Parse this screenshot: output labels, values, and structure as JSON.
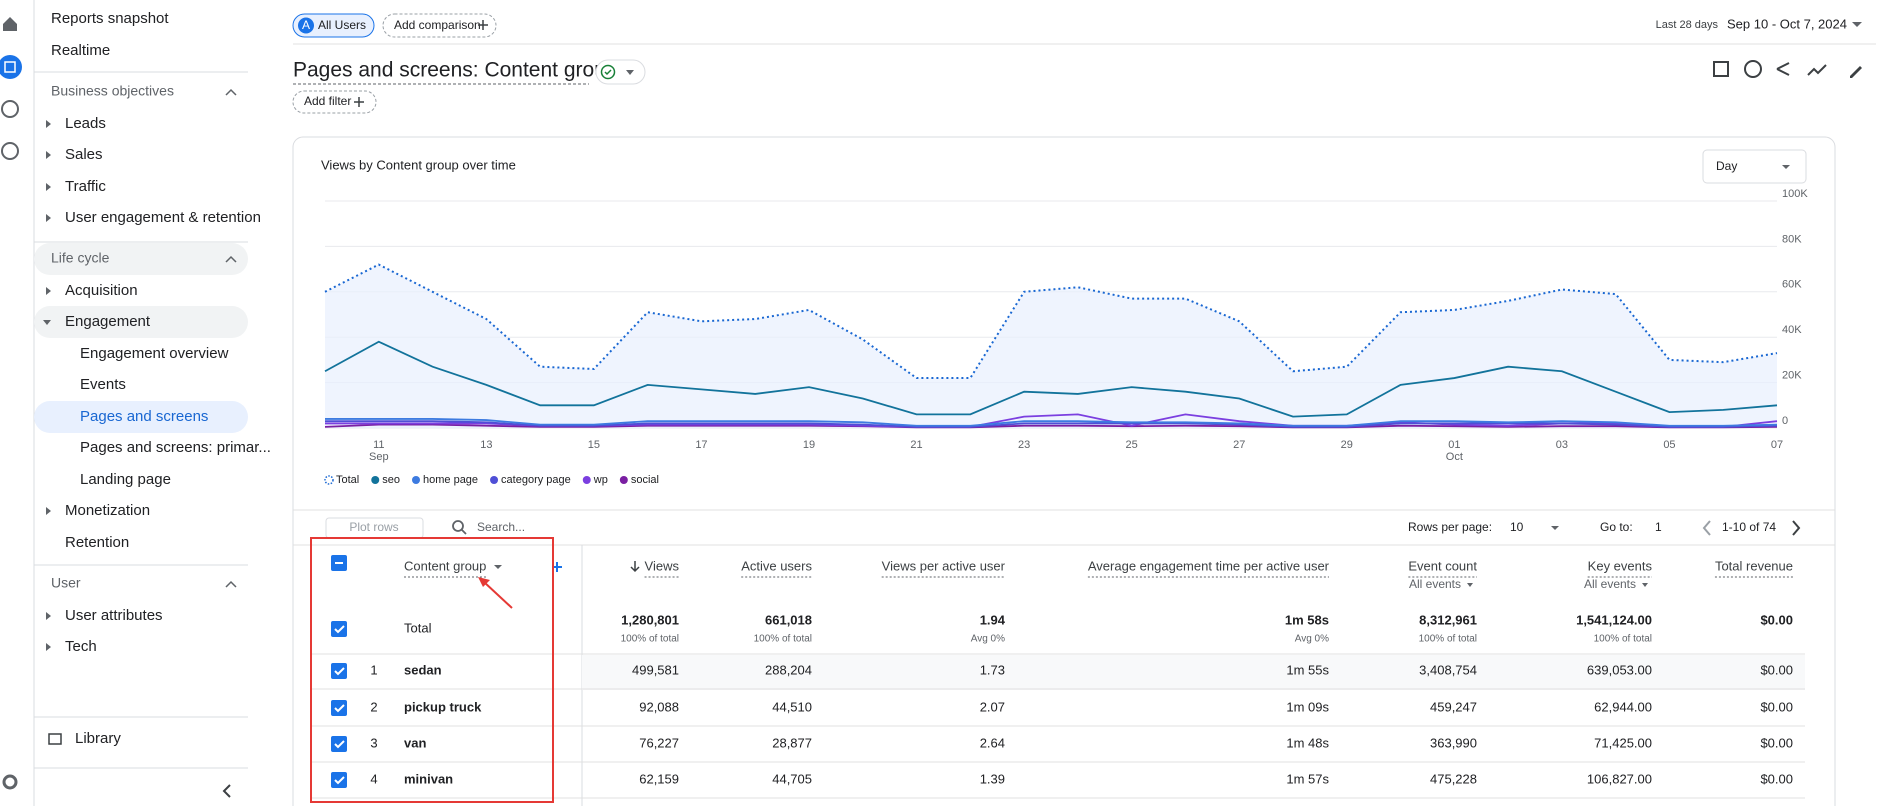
{
  "sidebar": {
    "top": [
      "Reports snapshot",
      "Realtime"
    ],
    "sections": [
      {
        "title": "Business objectives",
        "items": [
          {
            "label": "Leads"
          },
          {
            "label": "Sales"
          },
          {
            "label": "Traffic"
          },
          {
            "label": "User engagement & retention"
          }
        ]
      },
      {
        "title": "Life cycle",
        "items": [
          {
            "label": "Acquisition"
          },
          {
            "label": "Engagement",
            "children": [
              "Engagement overview",
              "Events",
              "Pages and screens",
              "Pages and screens: primar...",
              "Landing page"
            ]
          },
          {
            "label": "Monetization"
          },
          {
            "label": "Retention"
          }
        ]
      },
      {
        "title": "User",
        "items": [
          {
            "label": "User attributes"
          },
          {
            "label": "Tech"
          }
        ]
      }
    ],
    "footer": "Library"
  },
  "header": {
    "segment_badge": "A",
    "segment": "All Users",
    "add_comparison": "Add comparison",
    "date_label": "Last 28 days",
    "date_range": "Sep 10 - Oct 7, 2024",
    "title": "Pages and screens: Content group",
    "add_filter": "Add filter"
  },
  "chart": {
    "type": "line",
    "title": "Views by Content group over time",
    "granularity": "Day",
    "categories": [
      null,
      "11",
      null,
      "13",
      null,
      "15",
      null,
      "17",
      null,
      "19",
      null,
      "21",
      null,
      "23",
      null,
      "25",
      null,
      "27",
      null,
      "29",
      null,
      "01",
      null,
      "03",
      null,
      "05",
      null,
      "07"
    ],
    "months": [
      null,
      "Sep",
      null,
      null,
      null,
      null,
      null,
      null,
      null,
      null,
      null,
      null,
      null,
      null,
      null,
      null,
      null,
      null,
      null,
      null,
      null,
      "Oct",
      null,
      null,
      null,
      null,
      null,
      null
    ],
    "ylim": [
      0,
      100000
    ],
    "yticks": [
      0,
      {
        "value": 20000,
        "label": "20K"
      },
      {
        "value": 40000,
        "label": "40K"
      },
      {
        "value": 60000,
        "label": "60K"
      },
      {
        "value": 80000,
        "label": "80K"
      },
      {
        "value": 100000,
        "label": "100K"
      }
    ],
    "grid": true,
    "series": [
      {
        "name": "Total",
        "color": "#1967d2",
        "dashed": true,
        "fill": "#e8f0fe",
        "values": [
          60000,
          72000,
          60000,
          48000,
          27000,
          26000,
          51000,
          47000,
          48000,
          52000,
          39000,
          22000,
          22000,
          60000,
          62000,
          57000,
          57000,
          47000,
          25000,
          27000,
          51000,
          52000,
          56000,
          61000,
          59000,
          30000,
          29000,
          33000
        ]
      },
      {
        "name": "seo",
        "color": "#12739b",
        "values": [
          25000,
          38000,
          27000,
          19000,
          10000,
          10000,
          19000,
          17000,
          15000,
          18000,
          13000,
          6000,
          6000,
          16000,
          15000,
          18000,
          16000,
          13000,
          5000,
          6000,
          19000,
          22000,
          27000,
          25000,
          16000,
          7000,
          8000,
          10000
        ]
      },
      {
        "name": "home page",
        "color": "#3d7be0",
        "values": [
          4000,
          4000,
          4000,
          3500,
          1500,
          1500,
          3000,
          3000,
          3000,
          3000,
          2500,
          1000,
          1000,
          3000,
          3000,
          2500,
          2500,
          2000,
          1000,
          1000,
          3000,
          3000,
          2500,
          3000,
          2500,
          1000,
          1000,
          1500
        ]
      },
      {
        "name": "category page",
        "color": "#4f4fd6",
        "values": [
          3000,
          3000,
          3000,
          2500,
          1000,
          1000,
          2000,
          2000,
          2000,
          2000,
          1500,
          500,
          500,
          2000,
          2000,
          2000,
          2000,
          1500,
          500,
          500,
          2000,
          2000,
          2000,
          2000,
          1500,
          500,
          500,
          1000
        ]
      },
      {
        "name": "wp",
        "color": "#7b3fe0",
        "values": [
          2000,
          2000,
          2000,
          2000,
          1000,
          1000,
          1500,
          1500,
          1500,
          1500,
          1000,
          500,
          500,
          5000,
          6000,
          1000,
          6000,
          3000,
          1000,
          1000,
          2500,
          1500,
          1000,
          2000,
          2000,
          500,
          500,
          3000
        ]
      },
      {
        "name": "social",
        "color": "#7a1fa2",
        "values": [
          500,
          1500,
          1500,
          1000,
          500,
          500,
          1000,
          1000,
          1000,
          1000,
          800,
          300,
          300,
          1000,
          1000,
          800,
          1000,
          800,
          300,
          300,
          1000,
          800,
          500,
          800,
          800,
          300,
          300,
          500
        ]
      }
    ]
  },
  "table": {
    "plot_rows": "Plot rows",
    "search_placeholder": "Search...",
    "rows_per_page_label": "Rows per page:",
    "rows_per_page": 10,
    "go_to_label": "Go to:",
    "go_to": 1,
    "page_range": "1-10 of 74",
    "dimension": "Content group",
    "columns": [
      {
        "label": "Views"
      },
      {
        "label": "Active users"
      },
      {
        "label": "Views per active user"
      },
      {
        "label": "Average engagement time per active user"
      },
      {
        "label": "Event count",
        "sub": "All events"
      },
      {
        "label": "Key events",
        "sub": "All events"
      },
      {
        "label": "Total revenue"
      }
    ],
    "total": {
      "label": "Total",
      "values": [
        "1,280,801",
        "661,018",
        "1.94",
        "1m 58s",
        "8,312,961",
        "1,541,124.00",
        "$0.00"
      ],
      "notes": [
        "100% of total",
        "100% of total",
        "Avg 0%",
        "Avg 0%",
        "100% of total",
        "100% of total",
        null
      ]
    },
    "rows": [
      {
        "rank": 1,
        "label": "sedan",
        "values": [
          "499,581",
          "288,204",
          "1.73",
          "1m 55s",
          "3,408,754",
          "639,053.00",
          "$0.00"
        ]
      },
      {
        "rank": 2,
        "label": "pickup truck",
        "values": [
          "92,088",
          "44,510",
          "2.07",
          "1m 09s",
          "459,247",
          "62,944.00",
          "$0.00"
        ]
      },
      {
        "rank": 3,
        "label": "van",
        "values": [
          "76,227",
          "28,877",
          "2.64",
          "1m 48s",
          "363,990",
          "71,425.00",
          "$0.00"
        ]
      },
      {
        "rank": 4,
        "label": "minivan",
        "values": [
          "62,159",
          "44,705",
          "1.39",
          "1m 57s",
          "475,228",
          "106,827.00",
          "$0.00"
        ]
      }
    ]
  }
}
